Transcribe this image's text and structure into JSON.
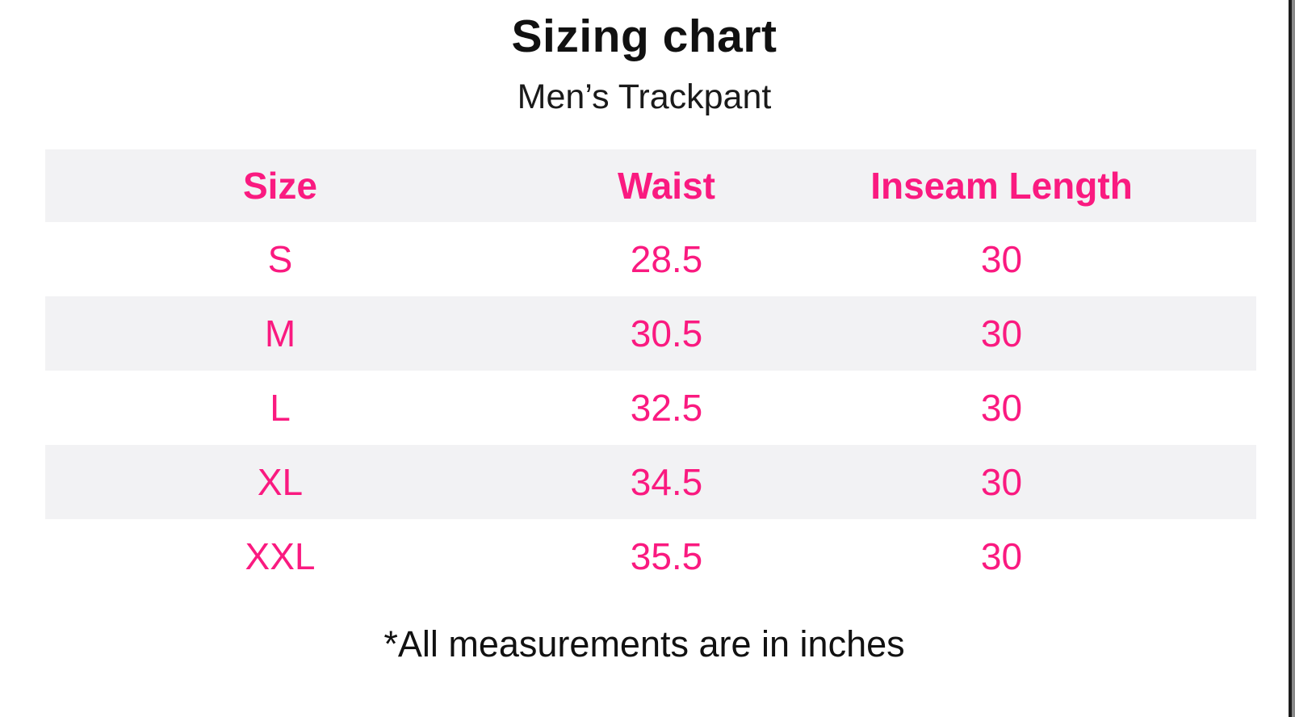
{
  "page": {
    "title": "Sizing chart",
    "subtitle": "Men’s Trackpant",
    "footnote": "*All measurements are in inches"
  },
  "colors": {
    "accent_pink": "#fa1a80",
    "row_alt_bg": "#f2f2f4",
    "text_black": "#111111",
    "edge_bar_black": "#1c1c1c",
    "edge_bar_gray": "#8a8a8a"
  },
  "chart_data": {
    "type": "table",
    "title": "Sizing chart",
    "subtitle": "Men’s Trackpant",
    "columns": [
      "Size",
      "Waist",
      "Inseam Length"
    ],
    "rows": [
      {
        "size": "S",
        "waist": 28.5,
        "inseam": 30
      },
      {
        "size": "M",
        "waist": 30.5,
        "inseam": 30
      },
      {
        "size": "L",
        "waist": 32.5,
        "inseam": 30
      },
      {
        "size": "XL",
        "waist": 34.5,
        "inseam": 30
      },
      {
        "size": "XXL",
        "waist": 35.5,
        "inseam": 30
      }
    ],
    "footnote": "*All measurements are in inches",
    "units": "inches",
    "layout": {
      "header_bg": "#f2f2f4",
      "zebra_striping": true,
      "text_color": "#fa1a80"
    }
  }
}
